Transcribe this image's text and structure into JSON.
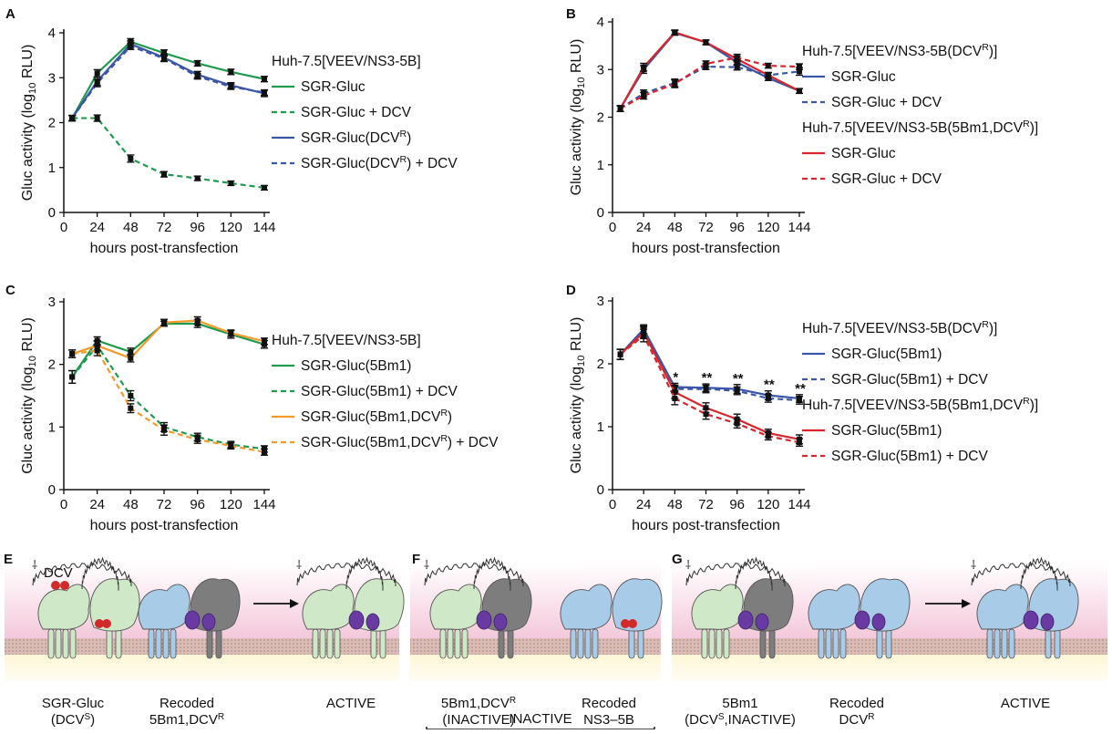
{
  "colors": {
    "green": "#1f9a4e",
    "blue": "#3a56a6",
    "red": "#d7262e",
    "orange": "#f39a2a",
    "black": "#111111",
    "membrane": "#c9a8a0",
    "membrane_fill": "#e2cbc5",
    "ns_green": "#cfe8c7",
    "ns_blue": "#a8cbe8",
    "ns_grey": "#7d7d7d",
    "ns_purple": "#6a3aa3",
    "dcv_red": "#d22a2a"
  },
  "chart_data": [
    {
      "panel": "A",
      "type": "line",
      "xlabel": "hours post-transfection",
      "ylabel": "Gluc activity (log10 RLU)",
      "ylim": [
        0,
        4
      ],
      "yticks": [
        "0",
        "1",
        "2",
        "3",
        "4"
      ],
      "xticks": [
        "0",
        "24",
        "48",
        "72",
        "96",
        "120",
        "144"
      ],
      "x": [
        6,
        24,
        48,
        72,
        96,
        120,
        144
      ],
      "legend_title": "Huh-7.5[VEEV/NS3-5B]",
      "legend_title2": "",
      "series": [
        {
          "name": "SGR-Gluc",
          "color": "green",
          "dash": false,
          "values": [
            2.1,
            3.1,
            3.8,
            3.55,
            3.32,
            3.13,
            2.97
          ],
          "err": [
            0.06,
            0.08,
            0.07,
            0.07,
            0.06,
            0.06,
            0.06
          ]
        },
        {
          "name": "SGR-Gluc + DCV",
          "color": "green",
          "dash": true,
          "values": [
            2.1,
            2.1,
            1.2,
            0.85,
            0.76,
            0.65,
            0.55
          ],
          "err": [
            0.06,
            0.07,
            0.08,
            0.06,
            0.05,
            0.05,
            0.05
          ]
        },
        {
          "name": "SGR-Gluc(DCV^R)",
          "color": "blue",
          "dash": false,
          "values": [
            2.1,
            2.92,
            3.75,
            3.45,
            3.07,
            2.83,
            2.65
          ],
          "err": [
            0.06,
            0.09,
            0.07,
            0.08,
            0.07,
            0.06,
            0.07
          ]
        },
        {
          "name": "SGR-Gluc(DCV^R) + DCV",
          "color": "blue",
          "dash": true,
          "values": [
            2.1,
            2.88,
            3.7,
            3.43,
            3.03,
            2.8,
            2.67
          ],
          "err": [
            0.06,
            0.08,
            0.07,
            0.07,
            0.06,
            0.06,
            0.06
          ]
        }
      ]
    },
    {
      "panel": "B",
      "type": "line",
      "xlabel": "hours post-transfection",
      "ylabel": "Gluc activity (log10 RLU)",
      "ylim": [
        0,
        4
      ],
      "yticks": [
        "0",
        "1",
        "2",
        "3",
        "4"
      ],
      "xticks": [
        "0",
        "24",
        "48",
        "72",
        "96",
        "120",
        "144"
      ],
      "x": [
        6,
        24,
        48,
        72,
        96,
        120,
        144
      ],
      "legend_title": "Huh-7.5[VEEV/NS3-5B(DCV^R)]",
      "legend_title2": "Huh-7.5[VEEV/NS3-5B(5Bm1,DCV^R)]",
      "series": [
        {
          "name": "SGR-Gluc",
          "color": "blue",
          "dash": false,
          "values": [
            2.18,
            3.0,
            3.77,
            3.57,
            3.15,
            2.82,
            2.55
          ],
          "err": [
            0.06,
            0.08,
            0.05,
            0.05,
            0.06,
            0.05,
            0.05
          ]
        },
        {
          "name": "SGR-Gluc + DCV",
          "color": "blue",
          "dash": true,
          "values": [
            2.18,
            2.5,
            2.72,
            3.06,
            3.05,
            2.88,
            2.96
          ],
          "err": [
            0.06,
            0.07,
            0.08,
            0.06,
            0.06,
            0.05,
            0.08
          ]
        },
        {
          "name": "SGR-Gluc",
          "color": "red",
          "dash": false,
          "values": [
            2.18,
            3.05,
            3.78,
            3.57,
            3.22,
            2.88,
            2.55
          ],
          "err": [
            0.06,
            0.08,
            0.05,
            0.05,
            0.06,
            0.06,
            0.05
          ]
        },
        {
          "name": "SGR-Gluc + DCV",
          "color": "red",
          "dash": true,
          "values": [
            2.18,
            2.45,
            2.7,
            3.12,
            3.25,
            3.08,
            3.06
          ],
          "err": [
            0.06,
            0.07,
            0.08,
            0.06,
            0.07,
            0.05,
            0.06
          ]
        }
      ]
    },
    {
      "panel": "C",
      "type": "line",
      "xlabel": "hours post-transfection",
      "ylabel": "Gluc activity (log10 RLU)",
      "ylim": [
        0,
        3
      ],
      "yticks": [
        "0",
        "1",
        "2",
        "3"
      ],
      "xticks": [
        "0",
        "24",
        "48",
        "72",
        "96",
        "120",
        "144"
      ],
      "x": [
        6,
        24,
        48,
        72,
        96,
        120,
        144
      ],
      "legend_title": "Huh-7.5[VEEV/NS3-5B]",
      "legend_title2": "",
      "series": [
        {
          "name": "SGR-Gluc(5Bm1)",
          "color": "green",
          "dash": false,
          "values": [
            1.8,
            2.38,
            2.2,
            2.65,
            2.65,
            2.48,
            2.32
          ],
          "err": [
            0.1,
            0.06,
            0.06,
            0.04,
            0.06,
            0.06,
            0.06
          ]
        },
        {
          "name": "SGR-Gluc(5Bm1) + DCV",
          "color": "green",
          "dash": true,
          "values": [
            1.8,
            2.3,
            1.5,
            1.0,
            0.84,
            0.72,
            0.65
          ],
          "err": [
            0.1,
            0.08,
            0.08,
            0.07,
            0.06,
            0.05,
            0.05
          ]
        },
        {
          "name": "SGR-Gluc(5Bm1,DCV^R)",
          "color": "orange",
          "dash": false,
          "values": [
            2.17,
            2.3,
            2.1,
            2.67,
            2.7,
            2.5,
            2.37
          ],
          "err": [
            0.06,
            0.07,
            0.06,
            0.05,
            0.06,
            0.05,
            0.05
          ]
        },
        {
          "name": "SGR-Gluc(5Bm1,DCV^R) + DCV",
          "color": "orange",
          "dash": true,
          "values": [
            2.17,
            2.22,
            1.3,
            0.95,
            0.8,
            0.7,
            0.6
          ],
          "err": [
            0.06,
            0.08,
            0.07,
            0.08,
            0.06,
            0.05,
            0.05
          ]
        }
      ]
    },
    {
      "panel": "D",
      "type": "line",
      "xlabel": "hours post-transfection",
      "ylabel": "Gluc activity (log10 RLU)",
      "ylim": [
        0,
        3
      ],
      "yticks": [
        "0",
        "1",
        "2",
        "3"
      ],
      "xticks": [
        "0",
        "24",
        "48",
        "72",
        "96",
        "120",
        "144"
      ],
      "x": [
        6,
        24,
        48,
        72,
        96,
        120,
        144
      ],
      "legend_title": "Huh-7.5[VEEV/NS3-5B(DCV^R)]",
      "legend_title2": "Huh-7.5[VEEV/NS3-5B(5Bm1,DCV^R)]",
      "annotations": [
        {
          "x": 48,
          "text": "*"
        },
        {
          "x": 72,
          "text": "**"
        },
        {
          "x": 96,
          "text": "**"
        },
        {
          "x": 120,
          "text": "**"
        },
        {
          "x": 144,
          "text": "**"
        }
      ],
      "series": [
        {
          "name": "SGR-Gluc(5Bm1)",
          "color": "blue",
          "dash": false,
          "values": [
            2.15,
            2.55,
            1.63,
            1.62,
            1.6,
            1.5,
            1.45
          ],
          "err": [
            0.08,
            0.07,
            0.06,
            0.06,
            0.07,
            0.07,
            0.06
          ]
        },
        {
          "name": "SGR-Gluc(5Bm1) + DCV",
          "color": "blue",
          "dash": true,
          "values": [
            2.15,
            2.5,
            1.6,
            1.6,
            1.57,
            1.45,
            1.42
          ],
          "err": [
            0.08,
            0.08,
            0.06,
            0.06,
            0.06,
            0.06,
            0.06
          ]
        },
        {
          "name": "SGR-Gluc(5Bm1)",
          "color": "red",
          "dash": false,
          "values": [
            2.15,
            2.5,
            1.55,
            1.3,
            1.12,
            0.9,
            0.8
          ],
          "err": [
            0.08,
            0.1,
            0.1,
            0.08,
            0.08,
            0.06,
            0.07
          ]
        },
        {
          "name": "SGR-Gluc(5Bm1) + DCV",
          "color": "red",
          "dash": true,
          "values": [
            2.15,
            2.45,
            1.45,
            1.2,
            1.05,
            0.85,
            0.75
          ],
          "err": [
            0.08,
            0.1,
            0.1,
            0.08,
            0.07,
            0.06,
            0.06
          ]
        }
      ]
    }
  ],
  "panels_bottom": {
    "E": {
      "label": "E",
      "dcv_label": "DCV",
      "items": [
        {
          "line1": "SGR-Gluc",
          "line2": "(DCV^S)"
        },
        {
          "line1": "Recoded",
          "line2": "5Bm1,DCV^R"
        },
        {
          "line1": "ACTIVE",
          "line2": ""
        }
      ]
    },
    "F": {
      "label": "F",
      "items": [
        {
          "line1": "5Bm1,DCV^R",
          "line2": "(INACTIVE)"
        },
        {
          "line1": "Recoded",
          "line2": "NS3–5B"
        }
      ],
      "bracket_label": "INACTIVE"
    },
    "G": {
      "label": "G",
      "items": [
        {
          "line1": "5Bm1",
          "line2": "(DCV^S,INACTIVE)"
        },
        {
          "line1": "Recoded",
          "line2": "DCV^R"
        },
        {
          "line1": "ACTIVE",
          "line2": ""
        }
      ]
    }
  }
}
